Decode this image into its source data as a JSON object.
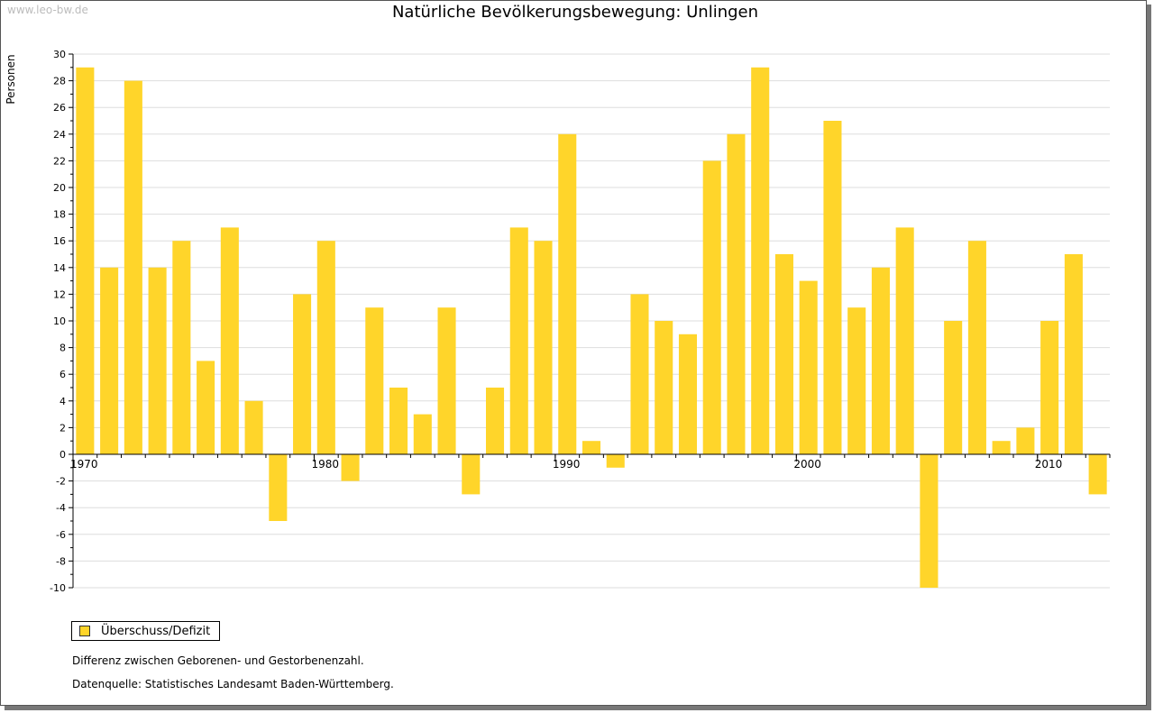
{
  "watermark": "www.leo-bw.de",
  "colors": {
    "bar": "#FFD52A",
    "grid": "#dddddd",
    "axis": "#000000"
  },
  "legend": {
    "label": "Überschuss/Defizit"
  },
  "notes": {
    "line1": "Differenz zwischen Geborenen- und Gestorbenenzahl.",
    "line2": "Datenquelle: Statistisches Landesamt Baden-Württemberg."
  },
  "chart_data": {
    "type": "bar",
    "title": "Natürliche Bevölkerungsbewegung: Unlingen",
    "ylabel": "Personen",
    "xlabel": "",
    "ylim": [
      -10,
      30
    ],
    "yticks": [
      -10,
      -8,
      -6,
      -4,
      -2,
      0,
      2,
      4,
      6,
      8,
      10,
      12,
      14,
      16,
      18,
      20,
      22,
      24,
      26,
      28,
      30
    ],
    "xtick_labels": [
      "1970",
      "1980",
      "1990",
      "2000",
      "2010"
    ],
    "grid": true,
    "legend_position": "bottom-left",
    "categories": [
      1970,
      1971,
      1972,
      1973,
      1974,
      1975,
      1976,
      1977,
      1978,
      1979,
      1980,
      1981,
      1982,
      1983,
      1984,
      1985,
      1986,
      1987,
      1988,
      1989,
      1990,
      1991,
      1992,
      1993,
      1994,
      1995,
      1996,
      1997,
      1998,
      1999,
      2000,
      2001,
      2002,
      2003,
      2004,
      2005,
      2006,
      2007,
      2008,
      2009,
      2010,
      2011,
      2012
    ],
    "series": [
      {
        "name": "Überschuss/Defizit",
        "values": [
          29,
          14,
          28,
          14,
          16,
          7,
          17,
          4,
          -5,
          12,
          16,
          -2,
          11,
          5,
          3,
          11,
          -3,
          5,
          17,
          16,
          24,
          1,
          -1,
          12,
          10,
          9,
          22,
          24,
          29,
          15,
          13,
          25,
          11,
          14,
          17,
          -10,
          10,
          16,
          1,
          2,
          10,
          15,
          -3
        ]
      }
    ]
  }
}
